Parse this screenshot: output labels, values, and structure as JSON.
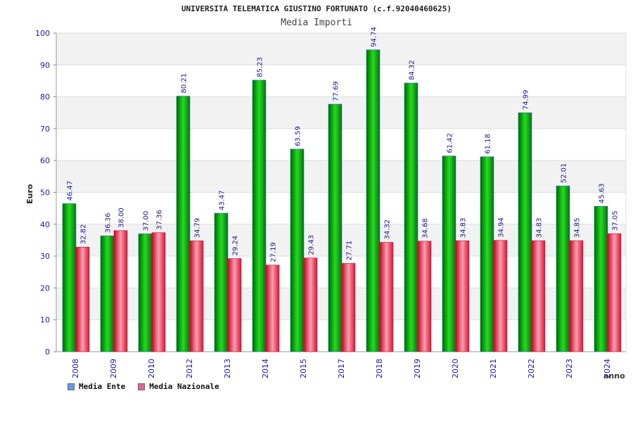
{
  "chart_data": {
    "type": "bar",
    "title": "UNIVERSITA TELEMATICA GIUSTINO FORTUNATO (c.f.92040460625)",
    "subtitle": "Media Importi",
    "xlabel": "anno",
    "ylabel": "Euro",
    "ylim": [
      0,
      100
    ],
    "yticks": [
      0,
      10,
      20,
      30,
      40,
      50,
      60,
      70,
      80,
      90,
      100
    ],
    "categories": [
      "2008",
      "2009",
      "2010",
      "2012",
      "2013",
      "2014",
      "2015",
      "2017",
      "2018",
      "2019",
      "2020",
      "2021",
      "2022",
      "2023",
      "2024"
    ],
    "series": [
      {
        "name": "Media Ente",
        "color": "#00aa00",
        "legend_color": "#6699ee",
        "values": [
          46.47,
          36.36,
          37.0,
          80.21,
          43.47,
          85.23,
          63.59,
          77.69,
          94.74,
          84.32,
          61.42,
          61.18,
          74.99,
          52.01,
          45.63
        ]
      },
      {
        "name": "Media Nazionale",
        "color": "#ee2244",
        "legend_color": "#dd6699",
        "values": [
          32.82,
          38.0,
          37.36,
          34.79,
          29.24,
          27.19,
          29.43,
          27.71,
          34.32,
          34.68,
          34.83,
          34.94,
          34.83,
          34.85,
          37.05
        ]
      }
    ],
    "grid": true,
    "legend_position": "bottom-left"
  }
}
